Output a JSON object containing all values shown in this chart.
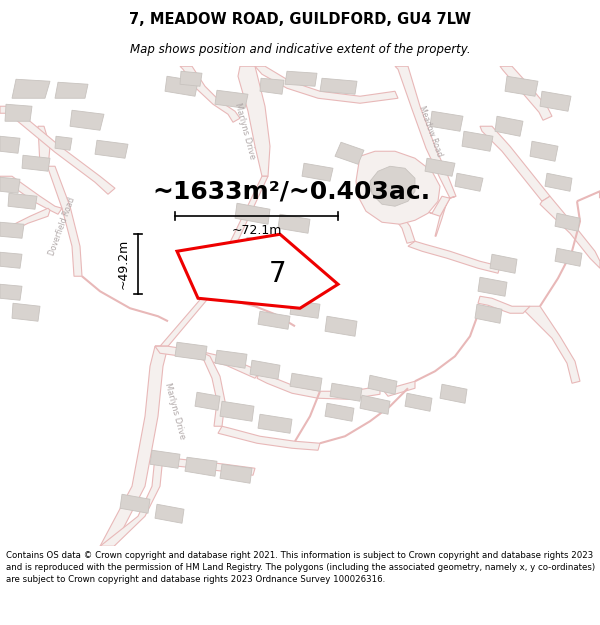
{
  "title": "7, MEADOW ROAD, GUILDFORD, GU4 7LW",
  "subtitle": "Map shows position and indicative extent of the property.",
  "area_text": "~1633m²/~0.403ac.",
  "label_7": "7",
  "dim_vertical": "~49.2m",
  "dim_horizontal": "~72.1m",
  "footer": "Contains OS data © Crown copyright and database right 2021. This information is subject to Crown copyright and database rights 2023 and is reproduced with the permission of HM Land Registry. The polygons (including the associated geometry, namely x, y co-ordinates) are subject to Crown copyright and database rights 2023 Ordnance Survey 100026316.",
  "bg_color": "#ffffff",
  "map_bg": "#f8f5f3",
  "road_color": "#e8b8b8",
  "road_fill": "#f5f0ee",
  "building_color": "#d8d3cf",
  "building_edge": "#c8c3bf",
  "plot_color": "#ee0000",
  "title_fontsize": 10.5,
  "subtitle_fontsize": 8.5,
  "area_fontsize": 18,
  "label_fontsize": 20,
  "dim_fontsize": 9,
  "footer_fontsize": 6.2,
  "road_label_color": "#b0a8a8",
  "road_lw_major": 7,
  "road_lw_minor": 3
}
